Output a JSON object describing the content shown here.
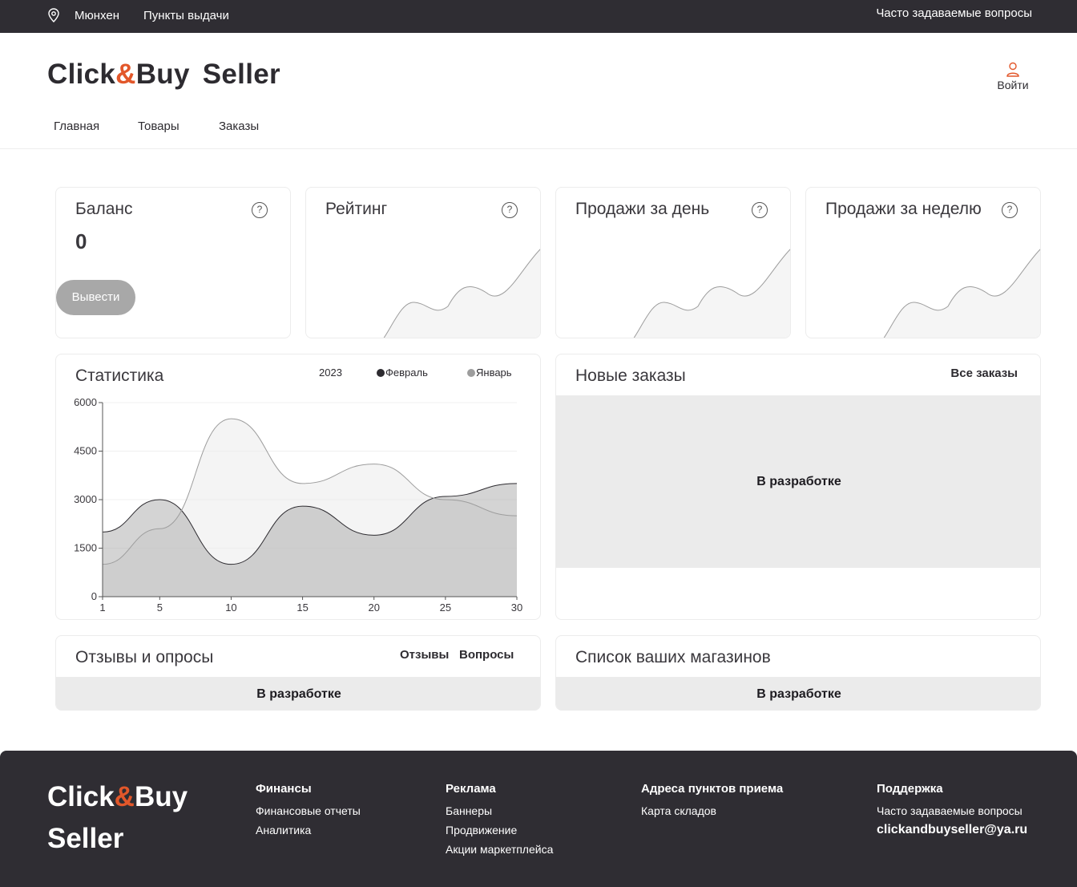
{
  "topbar": {
    "city": "Мюнхен",
    "pickup": "Пункты выдачи",
    "faq": "Часто задаваемые вопросы"
  },
  "header": {
    "logo_a": "Click",
    "logo_amp": "&",
    "logo_b": "Buy",
    "logo_seller": "Seller",
    "login": "Войти"
  },
  "nav": [
    "Главная",
    "Товары",
    "Заказы"
  ],
  "cards": {
    "balance": {
      "title": "Баланс",
      "value": "0",
      "button": "Вывести"
    },
    "rating": {
      "title": "Рейтинг"
    },
    "sales_day": {
      "title": "Продажи за день"
    },
    "sales_week": {
      "title": "Продажи за неделю"
    },
    "help": "?"
  },
  "stats": {
    "title": "Статистика",
    "year": "2023",
    "legend_feb": "Февраль",
    "legend_jan": "Январь"
  },
  "orders": {
    "title": "Новые заказы",
    "all": "Все заказы",
    "placeholder": "В разработке"
  },
  "reviews": {
    "title": "Отзывы и опросы",
    "tab_reviews": "Отзывы",
    "tab_questions": "Вопросы",
    "placeholder": "В разработке"
  },
  "shops": {
    "title": "Список ваших магазинов",
    "placeholder": "В разработке"
  },
  "footer": {
    "logo_a": "Click",
    "logo_amp": "&",
    "logo_b": "Buy",
    "logo_seller": "Seller",
    "finance": {
      "title": "Финансы",
      "items": [
        "Финансовые отчеты",
        "Аналитика"
      ]
    },
    "ads": {
      "title": "Реклама",
      "items": [
        "Баннеры",
        "Продвижение",
        "Акции маркетплейса"
      ]
    },
    "points": {
      "title": "Адреса пунктов приема",
      "items": [
        "Карта складов"
      ]
    },
    "support": {
      "title": "Поддержка",
      "items": [
        "Часто задаваемые вопросы"
      ],
      "email": "clickandbuyseller@ya.ru"
    }
  },
  "chart_data": {
    "type": "area",
    "title": "Статистика",
    "x": [
      1,
      5,
      10,
      15,
      20,
      25,
      30
    ],
    "xticks": [
      1,
      5,
      10,
      15,
      20,
      25,
      30
    ],
    "yticks": [
      0,
      1500,
      3000,
      4500,
      6000
    ],
    "ylim": [
      0,
      6000
    ],
    "series": [
      {
        "name": "Февраль",
        "values": [
          2000,
          3000,
          1000,
          2800,
          1900,
          3100,
          3500
        ],
        "color": "#2d2b30"
      },
      {
        "name": "Январь",
        "values": [
          1000,
          2100,
          5500,
          3500,
          4100,
          3000,
          2500
        ],
        "color": "#9d9d9d"
      }
    ],
    "grid": true,
    "legend": "top-right"
  },
  "colors": {
    "dark": "#2f2d33",
    "accent": "#e2572a",
    "muted": "#a8a8a8"
  }
}
